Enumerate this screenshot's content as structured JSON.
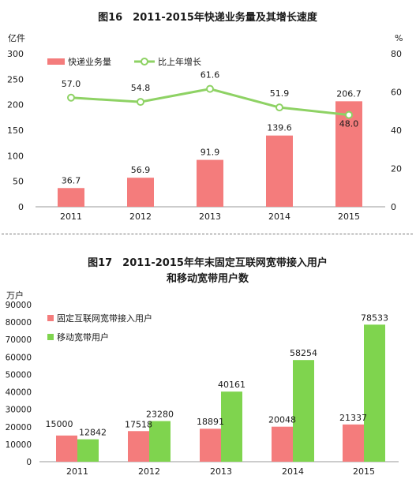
{
  "chart_data": [
    {
      "type": "bar+line",
      "title": "图16　2011-2015年快递业务量及其增长速度",
      "left_unit": "亿件",
      "right_unit": "%",
      "categories": [
        "2011",
        "2012",
        "2013",
        "2014",
        "2015"
      ],
      "ylim_left": [
        0,
        300
      ],
      "ylim_right": [
        0,
        80
      ],
      "yticks_left": [
        "0",
        "50",
        "100",
        "150",
        "200",
        "250",
        "300"
      ],
      "yticks_right": [
        "0",
        "20",
        "40",
        "60",
        "80"
      ],
      "series": [
        {
          "name": "快递业务量",
          "kind": "bar",
          "axis": "left",
          "color": "#f47c7c",
          "values": [
            36.7,
            56.9,
            91.9,
            139.6,
            206.7
          ],
          "labels": [
            "36.7",
            "56.9",
            "91.9",
            "139.6",
            "206.7"
          ]
        },
        {
          "name": "比上年增长",
          "kind": "line",
          "axis": "right",
          "color": "#8ed264",
          "values": [
            57.0,
            54.8,
            61.6,
            51.9,
            48.0
          ],
          "labels": [
            "57.0",
            "54.8",
            "61.6",
            "51.9",
            "48.0"
          ]
        }
      ],
      "grid": false,
      "legend": "top-left"
    },
    {
      "type": "bar",
      "title": "图17　2011-2015年年末固定互联网宽带接入用户",
      "subtitle": "和移动宽带用户数",
      "left_unit": "万户",
      "categories": [
        "2011",
        "2012",
        "2013",
        "2014",
        "2015"
      ],
      "ylim": [
        0,
        90000
      ],
      "yticks": [
        "0",
        "10000",
        "20000",
        "30000",
        "40000",
        "50000",
        "60000",
        "70000",
        "80000",
        "90000"
      ],
      "series": [
        {
          "name": "固定互联网宽带接入用户",
          "color": "#f47c7c",
          "values": [
            15000,
            17518,
            18891,
            20048,
            21337
          ],
          "labels": [
            "15000",
            "17518",
            "18891",
            "20048",
            "21337"
          ]
        },
        {
          "name": "移动宽带用户",
          "color": "#7fd44e",
          "values": [
            12842,
            23280,
            40161,
            58254,
            78533
          ],
          "labels": [
            "12842",
            "23280",
            "40161",
            "58254",
            "78533"
          ]
        }
      ],
      "grid": false,
      "legend": "top-left"
    }
  ]
}
